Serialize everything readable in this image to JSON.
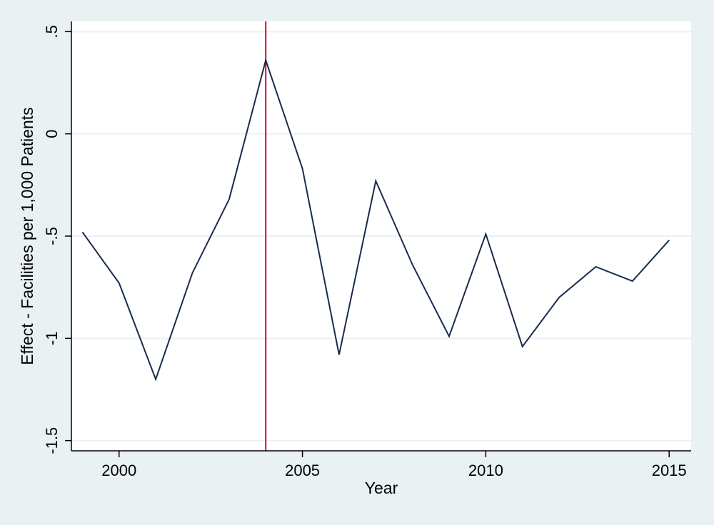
{
  "chart_data": {
    "type": "line",
    "title": "",
    "xlabel": "Year",
    "ylabel": "Effect - Facilities per 1,000 Patients",
    "xlim": [
      1998.7,
      2015.6
    ],
    "ylim": [
      -1.55,
      0.55
    ],
    "xticks": [
      2000,
      2005,
      2010,
      2015
    ],
    "xtick_labels": [
      "2000",
      "2005",
      "2010",
      "2015"
    ],
    "yticks": [
      0.5,
      0,
      -0.5,
      -1,
      -1.5
    ],
    "ytick_labels": [
      ".5",
      "0",
      "-.5",
      "-1",
      "-1.5"
    ],
    "grid": "horizontal",
    "legend": "none",
    "series": [
      {
        "x": [
          1999,
          2000,
          2001,
          2002,
          2003,
          2004,
          2005,
          2006,
          2007,
          2008,
          2009,
          2010,
          2011,
          2012,
          2013,
          2014,
          2015
        ],
        "y": [
          -0.48,
          -0.73,
          -1.2,
          -0.68,
          -0.32,
          0.36,
          -0.17,
          -1.08,
          -0.23,
          -0.64,
          -0.99,
          -0.49,
          -1.04,
          -0.8,
          -0.65,
          -0.72,
          -0.52
        ],
        "color": "#1a2b4f"
      }
    ],
    "vline": {
      "x": 2004,
      "color": "#c8102e"
    },
    "colors": {
      "outer_background": "#eaf1f3",
      "plot_background": "#ffffff",
      "gridline": "#eaf1f3",
      "axis": "#000000"
    }
  }
}
